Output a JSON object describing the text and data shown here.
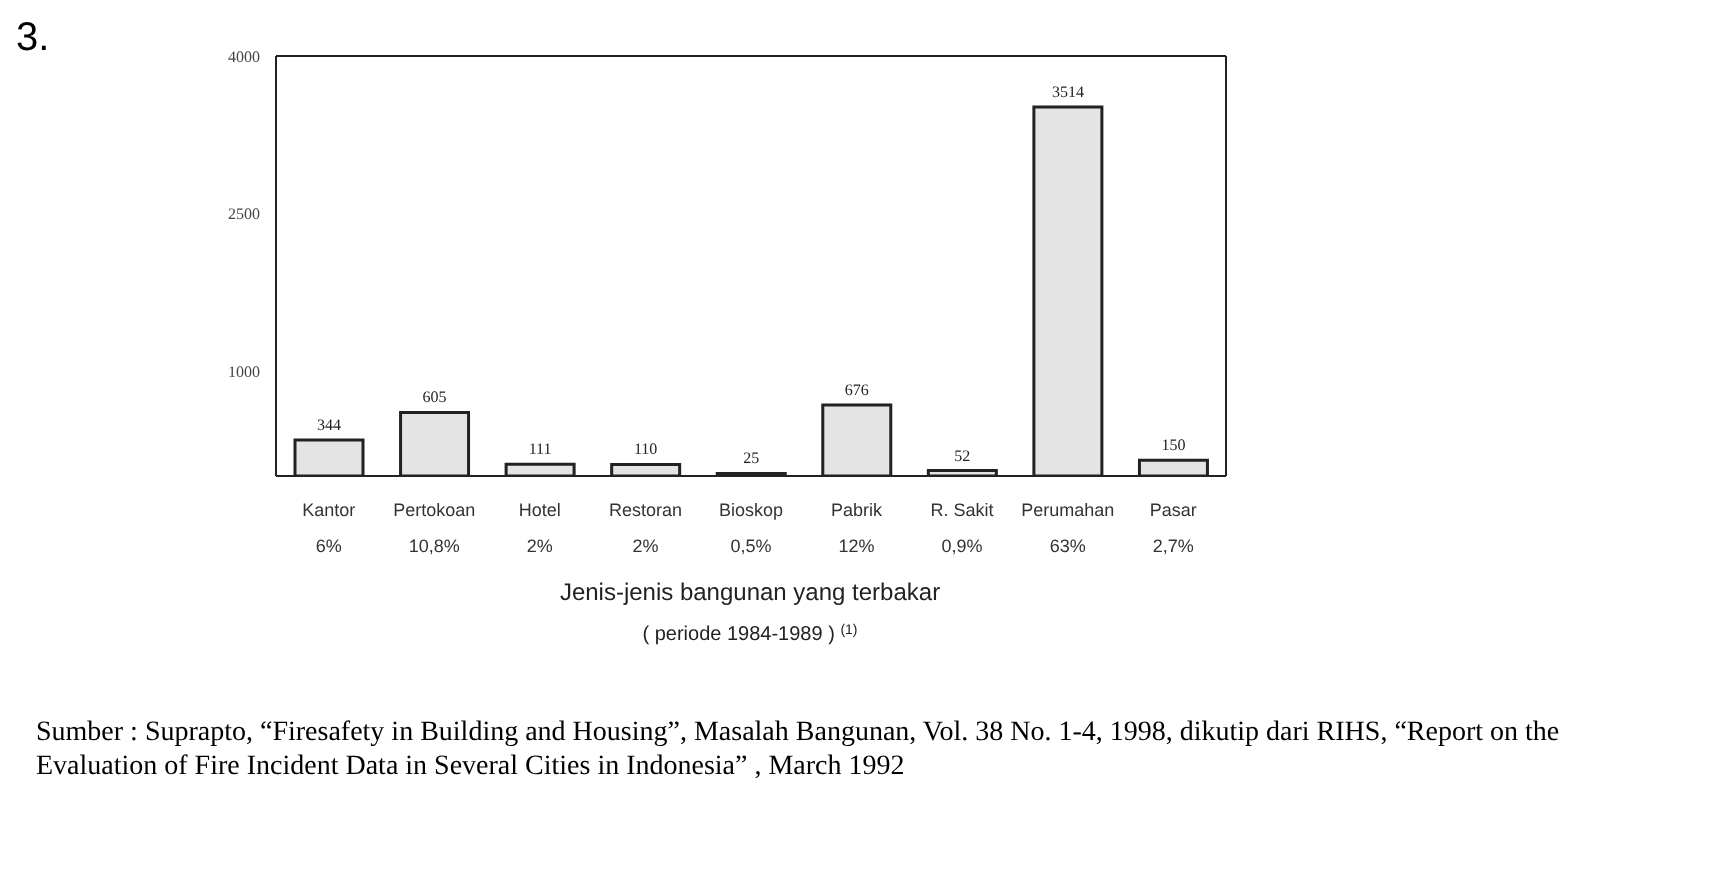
{
  "chart_data": {
    "type": "bar",
    "title": "3.",
    "categories": [
      "Kantor\n6%",
      "Pertokoan\n10,8%",
      "Hotel\n2%",
      "Restoran\n2%",
      "Bioskop\n0,5%",
      "Pabrik\n12%",
      "R. Sakit\n0,9%",
      "Perumahan\n63%",
      "Pasar\n2,7%"
    ],
    "values": [
      344,
      605,
      111,
      110,
      25,
      676,
      52,
      3514,
      150
    ],
    "color": "#e4e4e4",
    "data_labels": true,
    "ylim": [
      0,
      4000
    ],
    "yticks": [
      1000,
      2500,
      4000
    ],
    "xlabel": "Jenis-jenis bangunan yang terbakar\n( periode 1984-1989 ) $^{(1)}$",
    "annotations": [
      "Sumber :    Suprapto, “Firesafety in Building  and Housing”, Masalah Bangunan, Vol. 38 No. 1-4, 1998, dikutip dari RIHS, “Report on the Evaluation of Fire Incident Data in Several Cities in Indonesia” , March 1992"
    ],
    "grid": false,
    "legend": false
  }
}
